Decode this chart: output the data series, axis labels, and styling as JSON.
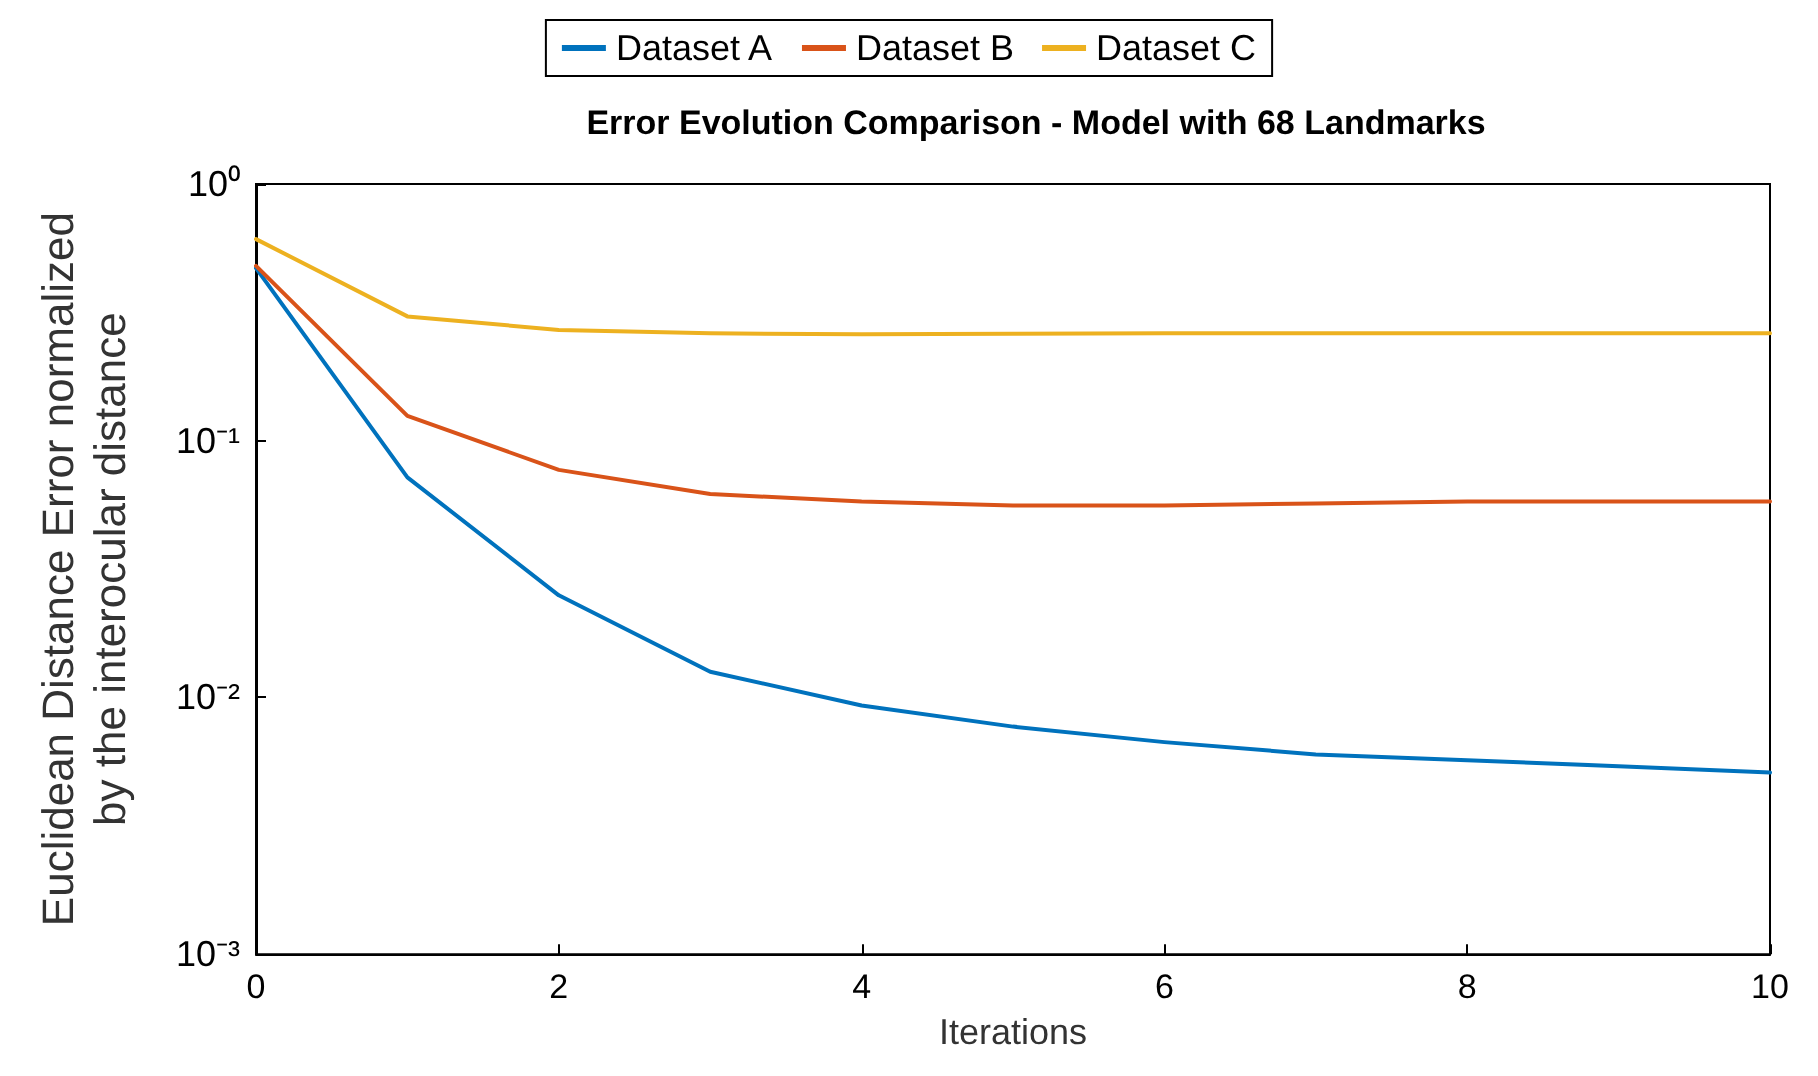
{
  "chart_data": {
    "type": "line",
    "title": "Error Evolution Comparison - Model with 68 Landmarks",
    "xlabel": "Iterations",
    "ylabel": "Euclidean Distance Error normalized\nby the interocular distance",
    "x": [
      0,
      1,
      2,
      3,
      4,
      5,
      6,
      7,
      8,
      9,
      10
    ],
    "series": [
      {
        "name": "Dataset A",
        "color": "#0072bd",
        "values": [
          0.47,
          0.072,
          0.025,
          0.0126,
          0.0093,
          0.0077,
          0.0067,
          0.006,
          0.0057,
          0.0054,
          0.0051
        ]
      },
      {
        "name": "Dataset B",
        "color": "#d95319",
        "values": [
          0.48,
          0.125,
          0.077,
          0.062,
          0.058,
          0.056,
          0.056,
          0.057,
          0.058,
          0.058,
          0.058
        ]
      },
      {
        "name": "Dataset C",
        "color": "#edb120",
        "values": [
          0.61,
          0.305,
          0.27,
          0.262,
          0.26,
          0.261,
          0.262,
          0.262,
          0.262,
          0.262,
          0.262
        ]
      }
    ],
    "xlim": [
      0,
      10
    ],
    "xticks": [
      0,
      2,
      4,
      6,
      8,
      10
    ],
    "ylim": [
      0.001,
      1
    ],
    "yticks": [
      {
        "value": 0.001,
        "label": "10⁻³"
      },
      {
        "value": 0.01,
        "label": "10⁻²"
      },
      {
        "value": 0.1,
        "label": "10⁻¹"
      },
      {
        "value": 1,
        "label": "10⁰"
      }
    ],
    "log": "y",
    "grid": false,
    "legend": "top",
    "marker": "none",
    "line_style": "solid"
  }
}
